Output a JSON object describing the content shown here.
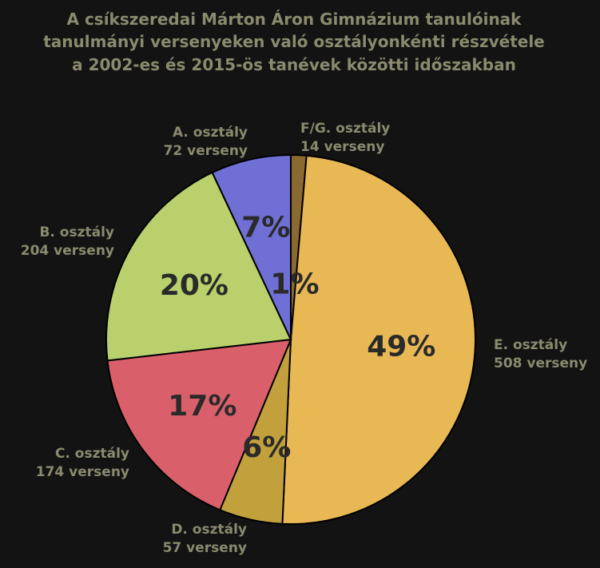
{
  "chart_data": {
    "type": "pie",
    "title": [
      "A csíkszeredai Márton Áron Gimnázium tanulóinak",
      "tanulmányi versenyeken való osztályonkénti részvétele",
      "a 2002-es és 2015-ös tanévek közötti időszakban"
    ],
    "slices": [
      {
        "name": "F/G. osztály",
        "value": 14,
        "count_label": "14 verseny",
        "percent_label": "1%",
        "color": "#8a6a30"
      },
      {
        "name": "E. osztály",
        "value": 508,
        "count_label": "508 verseny",
        "percent_label": "49%",
        "color": "#e8b855"
      },
      {
        "name": "D. osztály",
        "value": 57,
        "count_label": "57 verseny",
        "percent_label": "6%",
        "color": "#c2a13d"
      },
      {
        "name": "C. osztály",
        "value": 174,
        "count_label": "174 verseny",
        "percent_label": "17%",
        "color": "#d9606b"
      },
      {
        "name": "B. osztály",
        "value": 204,
        "count_label": "204 verseny",
        "percent_label": "20%",
        "color": "#b9d06c"
      },
      {
        "name": "A. osztály",
        "value": 72,
        "count_label": "72 verseny",
        "percent_label": "7%",
        "color": "#6f6fd6"
      }
    ]
  }
}
